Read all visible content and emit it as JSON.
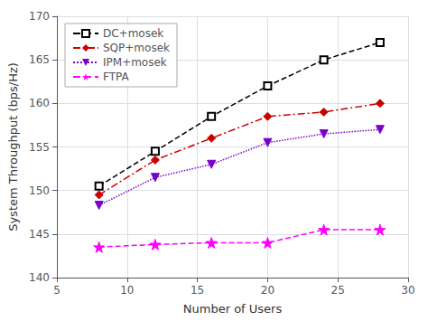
{
  "chart_data": {
    "type": "line",
    "xlabel": "Number of Users",
    "ylabel": "System Throughput (bps/Hz)",
    "x": [
      8,
      12,
      16,
      20,
      24,
      28
    ],
    "series": [
      {
        "name": "DC+mosek",
        "color": "#000000",
        "values": [
          150.5,
          154.5,
          158.5,
          162.0,
          165.0,
          167.0
        ],
        "marker": "square",
        "line_style": "dashed"
      },
      {
        "name": "SQP+mosek",
        "color": "#cc0000",
        "values": [
          149.5,
          153.5,
          156.0,
          158.5,
          159.0,
          160.0
        ],
        "marker": "diamond",
        "line_style": "dashdot"
      },
      {
        "name": "IPM+mosek",
        "color": "#7b00cc",
        "values": [
          148.3,
          151.5,
          153.0,
          155.5,
          156.5,
          157.0
        ],
        "marker": "triangle_down",
        "line_style": "dotted"
      },
      {
        "name": "FTPA",
        "color": "#ff00ff",
        "values": [
          143.5,
          143.8,
          144.0,
          144.0,
          145.5,
          145.5
        ],
        "marker": "star",
        "line_style": "dashed"
      }
    ],
    "xlim": [
      5,
      30
    ],
    "xticks": [
      5,
      10,
      15,
      20,
      25,
      30
    ],
    "ylim": [
      140,
      170
    ],
    "yticks": [
      140,
      145,
      150,
      155,
      160,
      165,
      170
    ],
    "grid": true,
    "legend": "upper left"
  }
}
